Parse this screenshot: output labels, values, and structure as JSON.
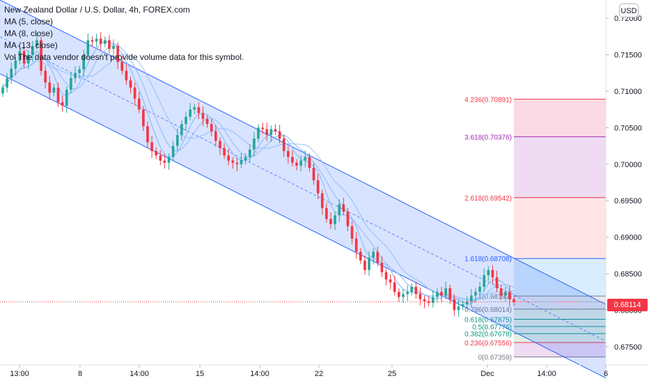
{
  "legend": {
    "title": "New Zealand Dollar / U.S. Dollar, 4h, FOREX.com",
    "ma5": "MA (5, close)",
    "ma8": "MA (8, close)",
    "ma13": "MA (13, close)",
    "vol": "Vol  The data vendor doesn't provide volume data for this symbol."
  },
  "currency": "USD",
  "last_price": "0.68114",
  "colors": {
    "up": "#26a69a",
    "down": "#f23645",
    "channel": "#2962ff",
    "ma": "#90bff9",
    "price_line": "#f23645"
  },
  "chart_data": {
    "type": "candlestick",
    "symbol": "New Zealand Dollar / U.S. Dollar",
    "timeframe": "4h",
    "source": "FOREX.com",
    "ylim": [
      0.6725,
      0.7225
    ],
    "y_ticks": [
      "0.72000",
      "0.71500",
      "0.71000",
      "0.70500",
      "0.70000",
      "0.69500",
      "0.69000",
      "0.68500",
      "0.68000",
      "0.67500"
    ],
    "x_ticks": [
      "13:00",
      "8",
      "14:00",
      "15",
      "14:00",
      "22",
      "25",
      "Dec",
      "14:00",
      "6"
    ],
    "last_price": 0.68114,
    "fibonacci": [
      {
        "level": "4.236",
        "price": "0.70891",
        "color": "#f23645"
      },
      {
        "level": "3.618",
        "price": "0.70376",
        "color": "#9c27b0"
      },
      {
        "level": "2.618",
        "price": "0.69542",
        "color": "#f23645"
      },
      {
        "level": "1.618",
        "price": "0.68708",
        "color": "#2962ff"
      },
      {
        "level": "1",
        "price": "0.68193",
        "color": "#787b86"
      },
      {
        "level": "0.786",
        "price": "0.68014",
        "color": "#787b86"
      },
      {
        "level": "0.618",
        "price": "0.67875",
        "color": "#089981"
      },
      {
        "level": "0.5",
        "price": "0.67776",
        "color": "#089981"
      },
      {
        "level": "0.382",
        "price": "0.67678",
        "color": "#089981"
      },
      {
        "level": "0.236",
        "price": "0.67556",
        "color": "#f23645"
      },
      {
        "level": "0",
        "price": "0.67359",
        "color": "#787b86"
      }
    ],
    "channel": {
      "upper_start": 0.7225,
      "upper_end": 0.6808,
      "lower_start": 0.7124,
      "lower_end": 0.6707
    },
    "closes": [
      0.7105,
      0.7118,
      0.7131,
      0.7142,
      0.7155,
      0.7138,
      0.715,
      0.7162,
      0.717,
      0.7128,
      0.7112,
      0.7098,
      0.7105,
      0.7085,
      0.708,
      0.7102,
      0.7118,
      0.7125,
      0.713,
      0.715,
      0.717,
      0.7168,
      0.7172,
      0.7165,
      0.717,
      0.7158,
      0.7162,
      0.714,
      0.7128,
      0.7115,
      0.7105,
      0.709,
      0.7075,
      0.7052,
      0.703,
      0.7018,
      0.7012,
      0.7005,
      0.7002,
      0.701,
      0.7025,
      0.704,
      0.7055,
      0.7065,
      0.7075,
      0.7078,
      0.707,
      0.7062,
      0.7055,
      0.7045,
      0.7032,
      0.7022,
      0.7012,
      0.7005,
      0.7002,
      0.7,
      0.7006,
      0.701,
      0.702,
      0.7035,
      0.705,
      0.7048,
      0.704,
      0.7048,
      0.7045,
      0.7035,
      0.7018,
      0.701,
      0.7002,
      0.6998,
      0.7005,
      0.701,
      0.6995,
      0.6978,
      0.696,
      0.694,
      0.6925,
      0.6918,
      0.693,
      0.6945,
      0.6935,
      0.6915,
      0.6898,
      0.688,
      0.6868,
      0.6855,
      0.6872,
      0.688,
      0.6865,
      0.6852,
      0.6842,
      0.6838,
      0.6825,
      0.6818,
      0.6822,
      0.6825,
      0.6832,
      0.6822,
      0.6815,
      0.6812,
      0.681,
      0.6818,
      0.6825,
      0.682,
      0.683,
      0.6815,
      0.68,
      0.6805,
      0.6808,
      0.6812,
      0.682,
      0.6825,
      0.6832,
      0.6848,
      0.6855,
      0.6845,
      0.683,
      0.682,
      0.6825,
      0.6815,
      0.6811
    ]
  }
}
